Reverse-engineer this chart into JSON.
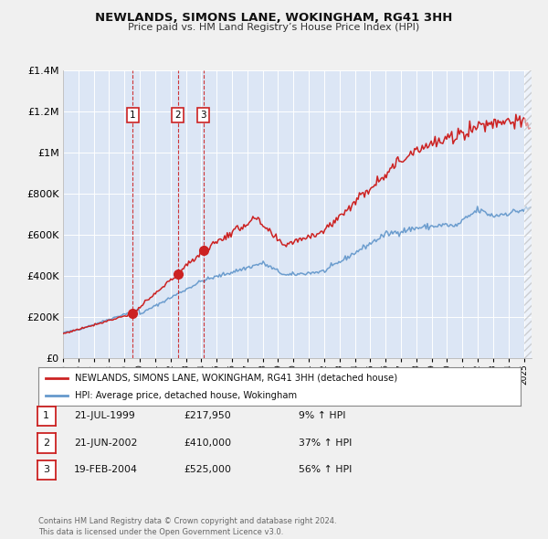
{
  "title": "NEWLANDS, SIMONS LANE, WOKINGHAM, RG41 3HH",
  "subtitle": "Price paid vs. HM Land Registry’s House Price Index (HPI)",
  "ylim": [
    0,
    1400000
  ],
  "xlim_start": 1995.0,
  "xlim_end": 2025.5,
  "bg_color": "#f0f0f0",
  "plot_bg_color": "#dce6f5",
  "grid_color": "#c8d8ec",
  "sale_color": "#cc2222",
  "hpi_color": "#6699cc",
  "sale_label": "NEWLANDS, SIMONS LANE, WOKINGHAM, RG41 3HH (detached house)",
  "hpi_label": "HPI: Average price, detached house, Wokingham",
  "transactions": [
    {
      "num": 1,
      "date_str": "21-JUL-1999",
      "year": 1999.54,
      "price": 217950,
      "pct": "9%"
    },
    {
      "num": 2,
      "date_str": "21-JUN-2002",
      "year": 2002.47,
      "price": 410000,
      "pct": "37%"
    },
    {
      "num": 3,
      "date_str": "19-FEB-2004",
      "year": 2004.13,
      "price": 525000,
      "pct": "56%"
    }
  ],
  "footer": "Contains HM Land Registry data © Crown copyright and database right 2024.\nThis data is licensed under the Open Government Licence v3.0.",
  "yticks": [
    0,
    200000,
    400000,
    600000,
    800000,
    1000000,
    1200000,
    1400000
  ],
  "ytick_labels": [
    "£0",
    "£200K",
    "£400K",
    "£600K",
    "£800K",
    "£1M",
    "£1.2M",
    "£1.4M"
  ]
}
